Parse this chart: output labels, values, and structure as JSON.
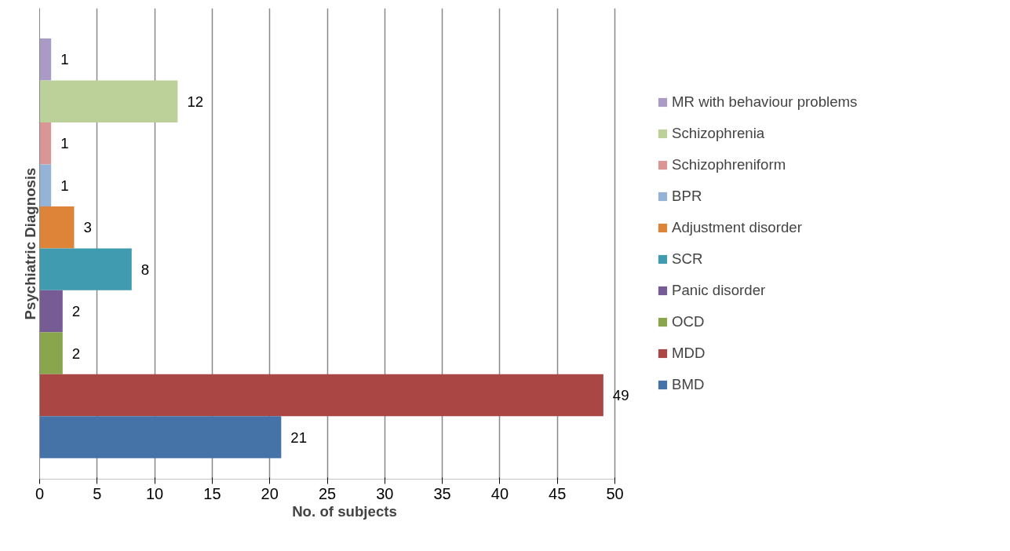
{
  "chart_data": {
    "type": "bar",
    "orientation": "horizontal",
    "xlabel": "No. of subjects",
    "ylabel": "Psychiatric Diagnosis",
    "categories": [
      null
    ],
    "series": [
      {
        "name": "MR with behaviour problems",
        "color": "#a99bc6",
        "values": [
          1
        ]
      },
      {
        "name": "Schizophrenia",
        "color": "#bcd09a",
        "values": [
          12
        ]
      },
      {
        "name": "Schizophreniform",
        "color": "#d99694",
        "values": [
          1
        ]
      },
      {
        "name": "BPR",
        "color": "#95b3d7",
        "values": [
          1
        ]
      },
      {
        "name": "Adjustment disorder",
        "color": "#dd8439",
        "values": [
          3
        ]
      },
      {
        "name": "SCR",
        "color": "#419bb0",
        "values": [
          8
        ]
      },
      {
        "name": "Panic disorder",
        "color": "#775b94",
        "values": [
          2
        ]
      },
      {
        "name": "OCD",
        "color": "#89a64c",
        "values": [
          2
        ]
      },
      {
        "name": "MDD",
        "color": "#aa4644",
        "values": [
          49
        ]
      },
      {
        "name": "BMD",
        "color": "#4572a7",
        "values": [
          21
        ]
      }
    ],
    "xlim": [
      0,
      50
    ],
    "xticks": [
      0,
      5,
      10,
      15,
      20,
      25,
      30,
      35,
      40,
      45,
      50
    ],
    "grid": "x",
    "legend": "right",
    "data_labels": true,
    "tick_labels": "x"
  }
}
